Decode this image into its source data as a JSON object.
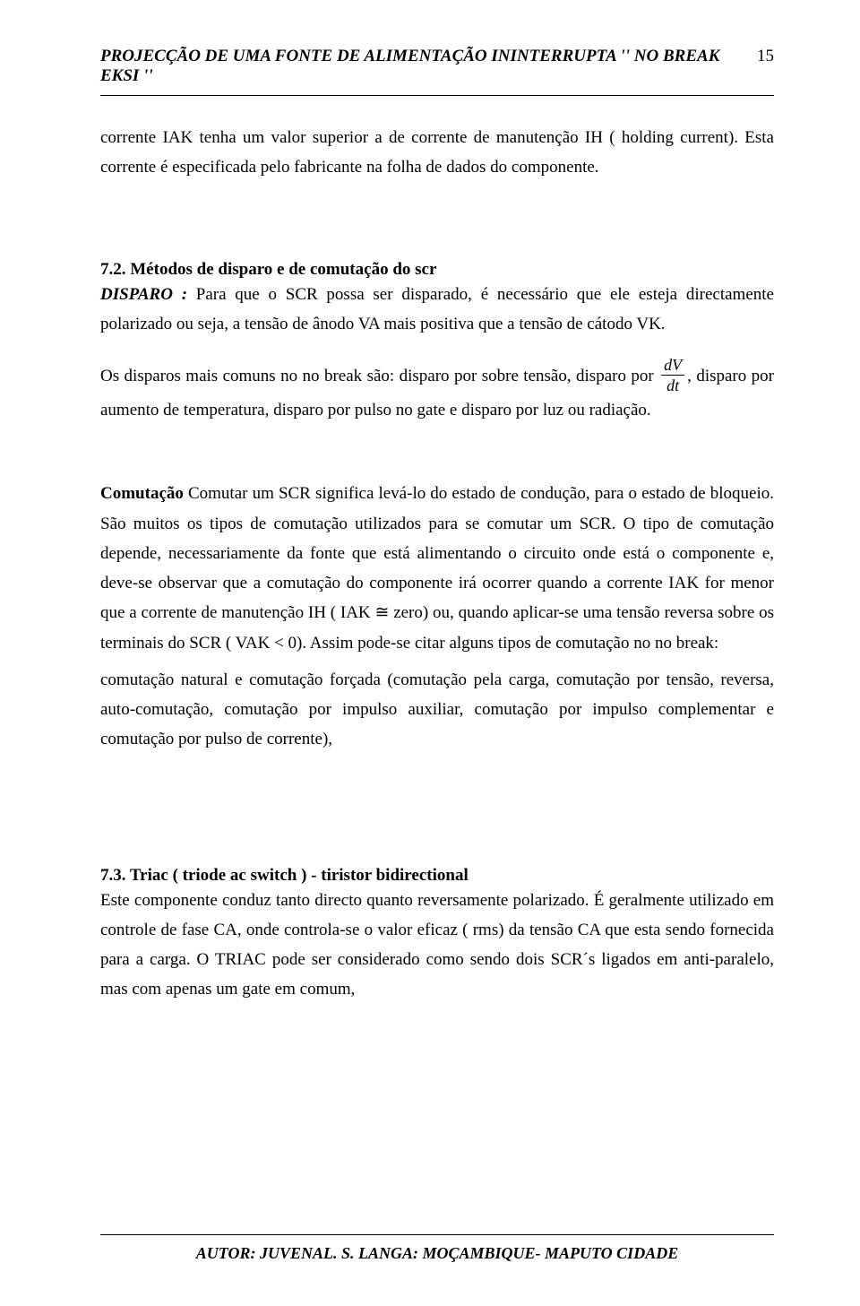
{
  "running_head": {
    "title": "PROJECÇÃO DE UMA FONTE DE ALIMENTAÇÃO ININTERRUPTA '' NO BREAK EKSI ''",
    "page_number": "15"
  },
  "p_intro": "corrente IAK tenha um valor superior a de corrente de manutenção IH ( holding current). Esta corrente é especificada pelo fabricante na folha de dados do componente.",
  "sec72": {
    "heading": "7.2. Métodos de disparo e de comutação do scr",
    "lead": "DISPARO  :",
    "body1": " Para que o SCR possa ser disparado, é necessário que ele esteja directamente polarizado ou seja, a tensão de ânodo VA mais positiva que a tensão de cátodo VK.",
    "body2_pre": "Os disparos mais comuns no no break  são: disparo por sobre tensão, disparo por ",
    "frac_num": "dV",
    "frac_den": "dt",
    "body2_post": ", disparo por aumento de temperatura, disparo por pulso no gate e disparo por luz ou radiação."
  },
  "comutacao": {
    "lead": " Comutação ",
    "body": "  Comutar um SCR significa levá-lo do estado de condução, para o estado de bloqueio. São muitos os tipos de comutação utilizados para se comutar um SCR. O tipo de comutação depende, necessariamente da fonte que está alimentando o circuito onde está o componente e, deve-se observar que a comutação do componente irá ocorrer quando a corrente IAK for menor que a corrente de manutenção IH ( IAK  ≅ zero) ou, quando aplicar-se uma tensão reversa sobre os terminais do SCR ( VAK < 0). Assim pode-se citar alguns tipos de comutação no no break:",
    "list": "comutação natural e comutação forçada (comutação pela carga, comutação por tensão, reversa, auto-comutação, comutação por impulso auxiliar, comutação por impulso complementar e comutação por pulso de corrente),"
  },
  "sec73": {
    "heading": "7.3. Triac ( triode ac switch ) - tiristor bidirectional",
    "body": "Este componente conduz tanto directo quanto reversamente polarizado. É geralmente utilizado em controle de fase CA, onde controla-se o valor eficaz ( rms) da tensão CA que esta sendo fornecida para a carga. O TRIAC pode ser considerado como sendo dois SCR´s ligados em anti-paralelo, mas com apenas um gate em comum,"
  },
  "footer": "AUTOR: JUVENAL. S. LANGA: MOÇAMBIQUE- MAPUTO CIDADE"
}
